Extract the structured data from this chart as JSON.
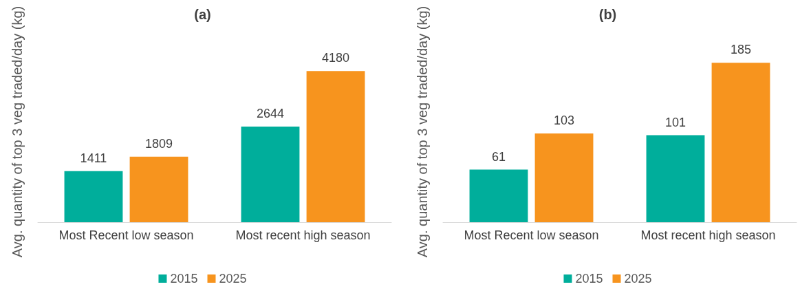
{
  "chart_data": [
    {
      "type": "bar",
      "title": "(a)",
      "ylabel": "Avg. quantity of top 3 veg traded/day (kg)",
      "categories": [
        "Most Recent low season",
        "Most recent high season"
      ],
      "series": [
        {
          "name": "2015",
          "color": "#00ae9b",
          "values": [
            1411,
            2644
          ]
        },
        {
          "name": "2025",
          "color": "#f7941e",
          "values": [
            1809,
            4180
          ]
        }
      ],
      "data_labels": true,
      "legend": "bottom",
      "grid": false
    },
    {
      "type": "bar",
      "title": "(b)",
      "ylabel": "Avg. quantity of top 3 veg traded/day (kg)",
      "categories": [
        "Most Recent low season",
        "Most recent high season"
      ],
      "series": [
        {
          "name": "2015",
          "color": "#00ae9b",
          "values": [
            61,
            101
          ]
        },
        {
          "name": "2025",
          "color": "#f7941e",
          "values": [
            103,
            185
          ]
        }
      ],
      "data_labels": true,
      "legend": "bottom",
      "grid": false
    }
  ]
}
